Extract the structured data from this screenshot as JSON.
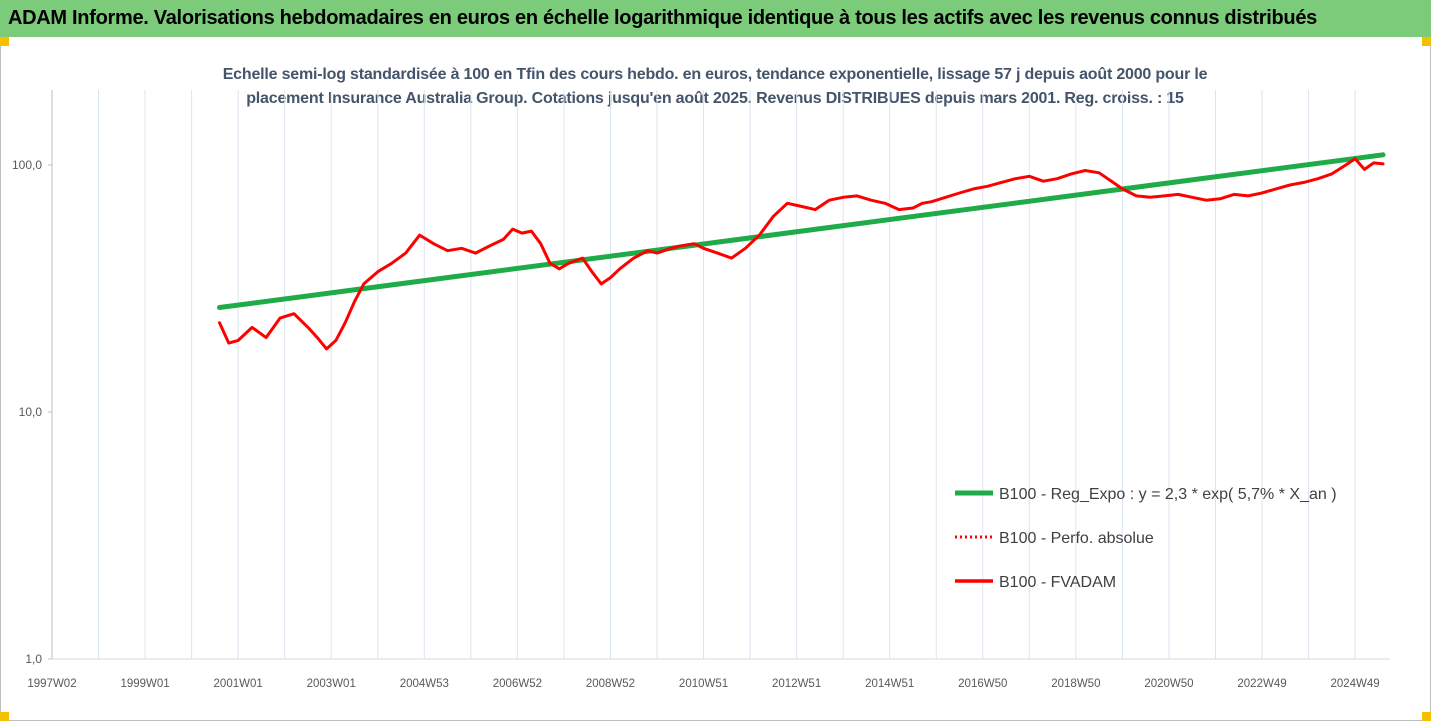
{
  "banner": {
    "title": "ADAM Informe. Valorisations hebdomadaires en euros en échelle logarithmique identique à tous les actifs avec les revenus connus distribués",
    "background": "#7ccb7a"
  },
  "chart_data": {
    "type": "line",
    "title_line1": "Echelle semi-log standardisée à 100 en Tfin des cours hebdo. en euros, tendance exponentielle, lissage 57 j depuis août 2000 pour le",
    "title_line2": "placement Insurance Australia Group. Cotations jusqu'en août 2025. Revenus DISTRIBUES depuis mars 2001. Reg. croiss. : 15",
    "y_scale": "log",
    "ylim": [
      1,
      200
    ],
    "y_ticks": [
      "1,0",
      "10,0",
      "100,0"
    ],
    "y_tick_values": [
      1,
      10,
      100
    ],
    "x_range": [
      1997.0,
      2025.75
    ],
    "x_ticks": [
      "1997W02",
      "1999W01",
      "2001W01",
      "2003W01",
      "2004W53",
      "2006W52",
      "2008W52",
      "2010W51",
      "2012W51",
      "2014W51",
      "2016W50",
      "2018W50",
      "2020W50",
      "2022W49",
      "2024W49"
    ],
    "x_tick_values": [
      1997.0,
      1999.0,
      2001.0,
      2003.0,
      2005.0,
      2007.0,
      2009.0,
      2011.0,
      2013.0,
      2015.0,
      2017.0,
      2019.0,
      2021.0,
      2023.0,
      2025.0
    ],
    "grid": "vertical",
    "legend_position": "lower-right",
    "series": [
      {
        "name": "B100 - Reg_Expo : y = 2,3 * exp( 5,7% *  X_an )",
        "color": "#1fab48",
        "style": "solid-thick",
        "x": [
          2000.6,
          2025.6
        ],
        "values": [
          26.5,
          110
        ]
      },
      {
        "name": "B100 - Perfo. absolue",
        "color": "#ff0000",
        "style": "dotted",
        "x": [],
        "values": []
      },
      {
        "name": "B100 - FVADAM",
        "color": "#ff0000",
        "style": "solid",
        "x": [
          2000.6,
          2000.8,
          2001.0,
          2001.3,
          2001.6,
          2001.9,
          2002.2,
          2002.5,
          2002.7,
          2002.9,
          2003.1,
          2003.3,
          2003.5,
          2003.7,
          2004.0,
          2004.3,
          2004.6,
          2004.9,
          2005.2,
          2005.5,
          2005.8,
          2006.1,
          2006.4,
          2006.7,
          2006.9,
          2007.1,
          2007.3,
          2007.5,
          2007.7,
          2007.9,
          2008.1,
          2008.4,
          2008.6,
          2008.8,
          2009.0,
          2009.2,
          2009.5,
          2009.8,
          2010.0,
          2010.3,
          2010.5,
          2010.8,
          2011.0,
          2011.3,
          2011.6,
          2011.9,
          2012.2,
          2012.5,
          2012.8,
          2013.1,
          2013.4,
          2013.7,
          2014.0,
          2014.3,
          2014.6,
          2014.9,
          2015.2,
          2015.5,
          2015.7,
          2015.9,
          2016.2,
          2016.5,
          2016.8,
          2017.1,
          2017.4,
          2017.7,
          2018.0,
          2018.3,
          2018.6,
          2018.9,
          2019.2,
          2019.5,
          2019.8,
          2020.0,
          2020.3,
          2020.6,
          2020.9,
          2021.2,
          2021.5,
          2021.8,
          2022.1,
          2022.4,
          2022.7,
          2023.0,
          2023.3,
          2023.6,
          2023.9,
          2024.2,
          2024.5,
          2024.8,
          2025.0,
          2025.2,
          2025.4,
          2025.6
        ],
        "values": [
          23,
          19,
          19.5,
          22,
          20,
          24,
          25,
          22,
          20,
          18,
          19.5,
          23,
          28,
          33,
          37,
          40,
          44,
          52,
          48,
          45,
          46,
          44,
          47,
          50,
          55,
          53,
          54,
          48,
          40,
          38,
          40,
          42,
          37,
          33,
          35,
          38,
          42,
          45,
          44,
          46,
          47,
          48,
          46,
          44,
          42,
          46,
          52,
          62,
          70,
          68,
          66,
          72,
          74,
          75,
          72,
          70,
          66,
          67,
          70,
          71,
          74,
          77,
          80,
          82,
          85,
          88,
          90,
          86,
          88,
          92,
          95,
          93,
          85,
          80,
          75,
          74,
          75,
          76,
          74,
          72,
          73,
          76,
          75,
          77,
          80,
          83,
          85,
          88,
          92,
          100,
          106,
          96,
          102,
          101
        ]
      }
    ]
  }
}
